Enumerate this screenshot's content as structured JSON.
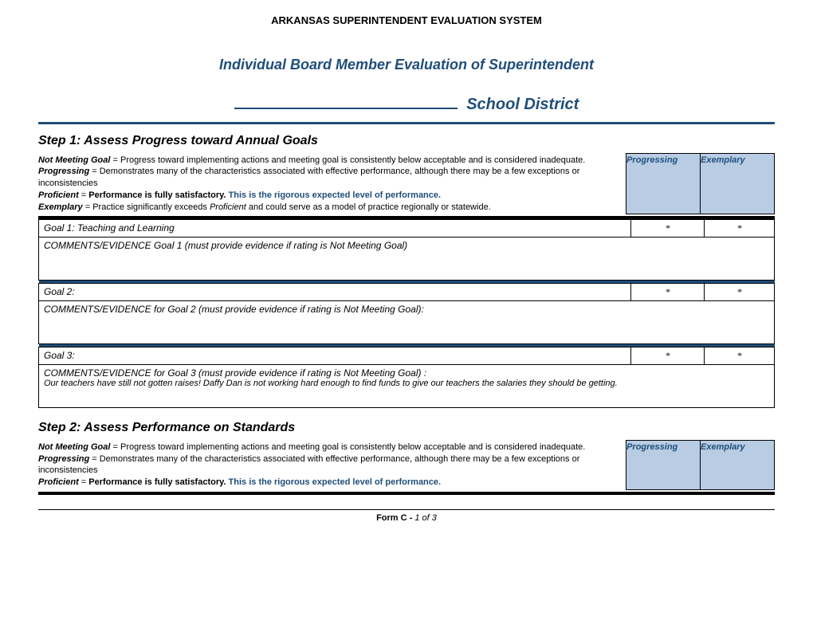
{
  "header": {
    "system_title": "ARKANSAS SUPERINTENDENT EVALUATION SYSTEM",
    "subtitle": "Individual Board Member Evaluation of Superintendent",
    "district_label": "School District"
  },
  "colors": {
    "brand_blue": "#1f4e79",
    "header_bg": "#b8cce4",
    "black": "#000000",
    "white": "#ffffff"
  },
  "step1": {
    "heading": "Step 1: Assess Progress toward Annual Goals",
    "rating_cols": {
      "progressing": "Progressing",
      "exemplary": "Exemplary"
    },
    "legend": {
      "not_meeting_label": "Not Meeting Goal",
      "not_meeting_text": "= Progress toward implementing actions and meeting goal is consistently below acceptable and is considered inadequate.",
      "progressing_label": "Progressing",
      "progressing_text": "= Demonstrates many of the characteristics associated with effective performance, although there may be a few exceptions or inconsistencies",
      "proficient_label": "Proficient",
      "proficient_text_lead": "= ",
      "proficient_text_bold": "Performance is fully satisfactory.",
      "proficient_text_blue": "This is the rigorous expected level of performance.",
      "exemplary_label": "Exemplary",
      "exemplary_text_lead": "= Practice significantly exceeds ",
      "exemplary_text_ital": "Proficient",
      "exemplary_text_tail": " and could serve as a model of practice regionally or statewide."
    },
    "goals": [
      {
        "title": "Goal 1: Teaching and Learning",
        "progressing_mark": "*",
        "exemplary_mark": "*",
        "comments_label": "COMMENTS/EVIDENCE Goal 1 (must provide evidence if rating is Not Meeting Goal)",
        "comments_body": ""
      },
      {
        "title": "Goal 2:",
        "progressing_mark": "*",
        "exemplary_mark": "*",
        "comments_label": "COMMENTS/EVIDENCE for Goal 2 (must provide evidence if rating is Not Meeting Goal):",
        "comments_body": ""
      },
      {
        "title": "Goal 3:",
        "progressing_mark": "*",
        "exemplary_mark": "*",
        "comments_label": "COMMENTS/EVIDENCE for Goal 3 (must provide evidence if rating is Not Meeting Goal) :",
        "comments_body": "Our teachers have still not gotten raises!  Daffy Dan is not working hard enough to find funds to give our teachers the salaries they should be getting."
      }
    ]
  },
  "step2": {
    "heading": "Step 2: Assess Performance on Standards",
    "rating_cols": {
      "progressing": "Progressing",
      "exemplary": "Exemplary"
    },
    "legend": {
      "not_meeting_label": "Not Meeting Goal",
      "not_meeting_text": "= Progress toward implementing actions and meeting goal is consistently below acceptable and is considered inadequate.",
      "progressing_label": "Progressing",
      "progressing_text": "= Demonstrates many of the characteristics associated with effective performance, although there may be a few exceptions or inconsistencies",
      "proficient_label": "Proficient",
      "proficient_text_lead": "= ",
      "proficient_text_bold": "Performance is fully satisfactory.",
      "proficient_text_blue": "This is the rigorous expected level of performance."
    }
  },
  "footer": {
    "form_label": "Form C - ",
    "page_current": "1",
    "page_of": " of ",
    "page_total": "3"
  }
}
